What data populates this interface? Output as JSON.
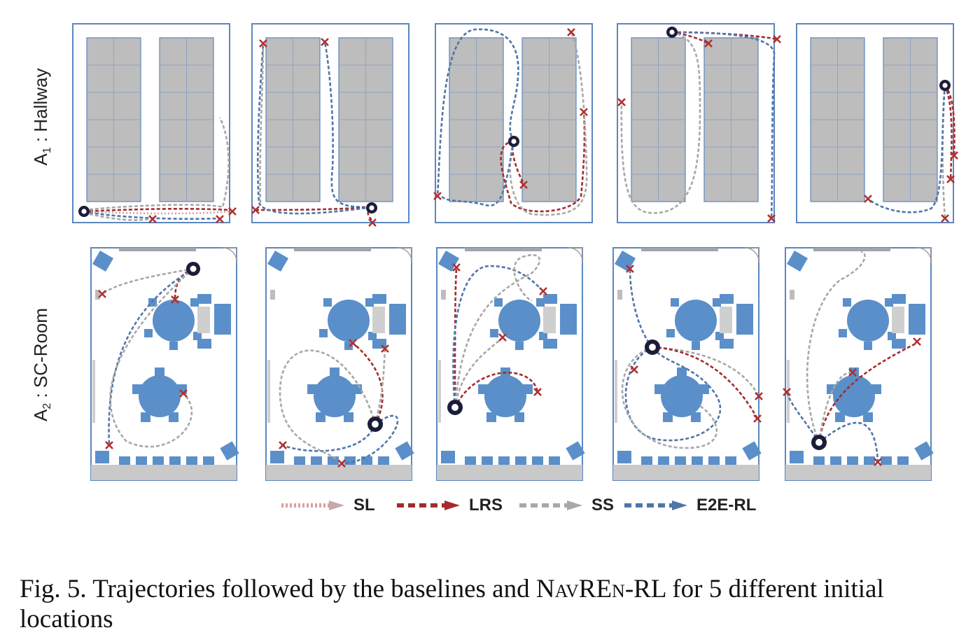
{
  "rows": [
    {
      "label_main": "A",
      "label_sub": "1",
      "label_rest": " : Hallway"
    },
    {
      "label_main": "A",
      "label_sub": "2",
      "label_rest": " : SC-Room"
    }
  ],
  "legend": [
    {
      "label": "SL",
      "color": "#d9a0a0",
      "style": "dotted"
    },
    {
      "label": "LRS",
      "color": "#a32c2c",
      "style": "dashed"
    },
    {
      "label": "SS",
      "color": "#a8a8a8",
      "style": "dashed"
    },
    {
      "label": "E2E-RL",
      "color": "#4f76a8",
      "style": "dashed"
    }
  ],
  "caption": {
    "prefix": "Fig. 5.  Trajectories followed by the baselines and ",
    "method": "NavREn",
    "method_suffix": "-RL",
    "suffix": " for 5 different initial locations"
  },
  "colors": {
    "frame": "#5b87bf",
    "cell": "#bdbdbd",
    "furniture": "#5b8fc9",
    "goal": "#b03030",
    "start": "#1c1c3a"
  }
}
